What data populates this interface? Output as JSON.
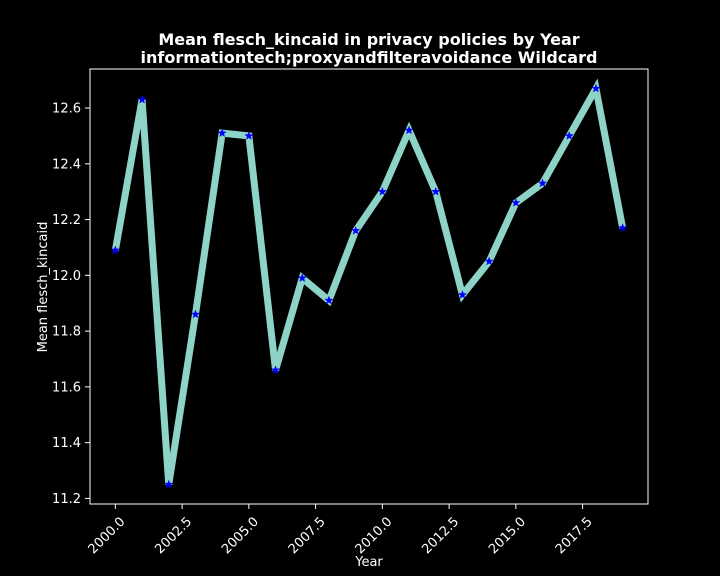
{
  "chart_data": {
    "type": "line",
    "title": "Mean flesch_kincaid in privacy policies by Year",
    "subtitle": "informationtech;proxyandfilteravoidance Wildcard",
    "xlabel": "Year",
    "ylabel": "Mean flesch_kincaid",
    "xlim": [
      1999.05,
      2019.95
    ],
    "ylim": [
      11.18,
      12.74
    ],
    "x_ticks": [
      2000.0,
      2002.5,
      2005.0,
      2007.5,
      2010.0,
      2012.5,
      2015.0,
      2017.5
    ],
    "x_tick_labels": [
      "2000.0",
      "2002.5",
      "2005.0",
      "2007.5",
      "2010.0",
      "2012.5",
      "2015.0",
      "2017.5"
    ],
    "y_ticks": [
      11.2,
      11.4,
      11.6,
      11.8,
      12.0,
      12.2,
      12.4,
      12.6
    ],
    "y_tick_labels": [
      "11.2",
      "11.4",
      "11.6",
      "11.8",
      "12.0",
      "12.2",
      "12.4",
      "12.6"
    ],
    "grid": false,
    "line_color": "#8dd3c7",
    "marker_color": "#0000ff",
    "marker": "star",
    "background": "#000000",
    "foreground": "#ffffff",
    "series": [
      {
        "x": [
          2000,
          2001,
          2002,
          2003,
          2004,
          2005,
          2006,
          2007,
          2008,
          2009,
          2010,
          2011,
          2012,
          2013,
          2014,
          2015,
          2016,
          2017,
          2018,
          2019
        ],
        "values": [
          12.09,
          12.63,
          11.25,
          11.86,
          12.51,
          12.5,
          11.66,
          11.99,
          11.91,
          12.16,
          12.3,
          12.52,
          12.3,
          11.93,
          12.05,
          12.26,
          12.33,
          12.5,
          12.67,
          12.17
        ]
      }
    ]
  }
}
